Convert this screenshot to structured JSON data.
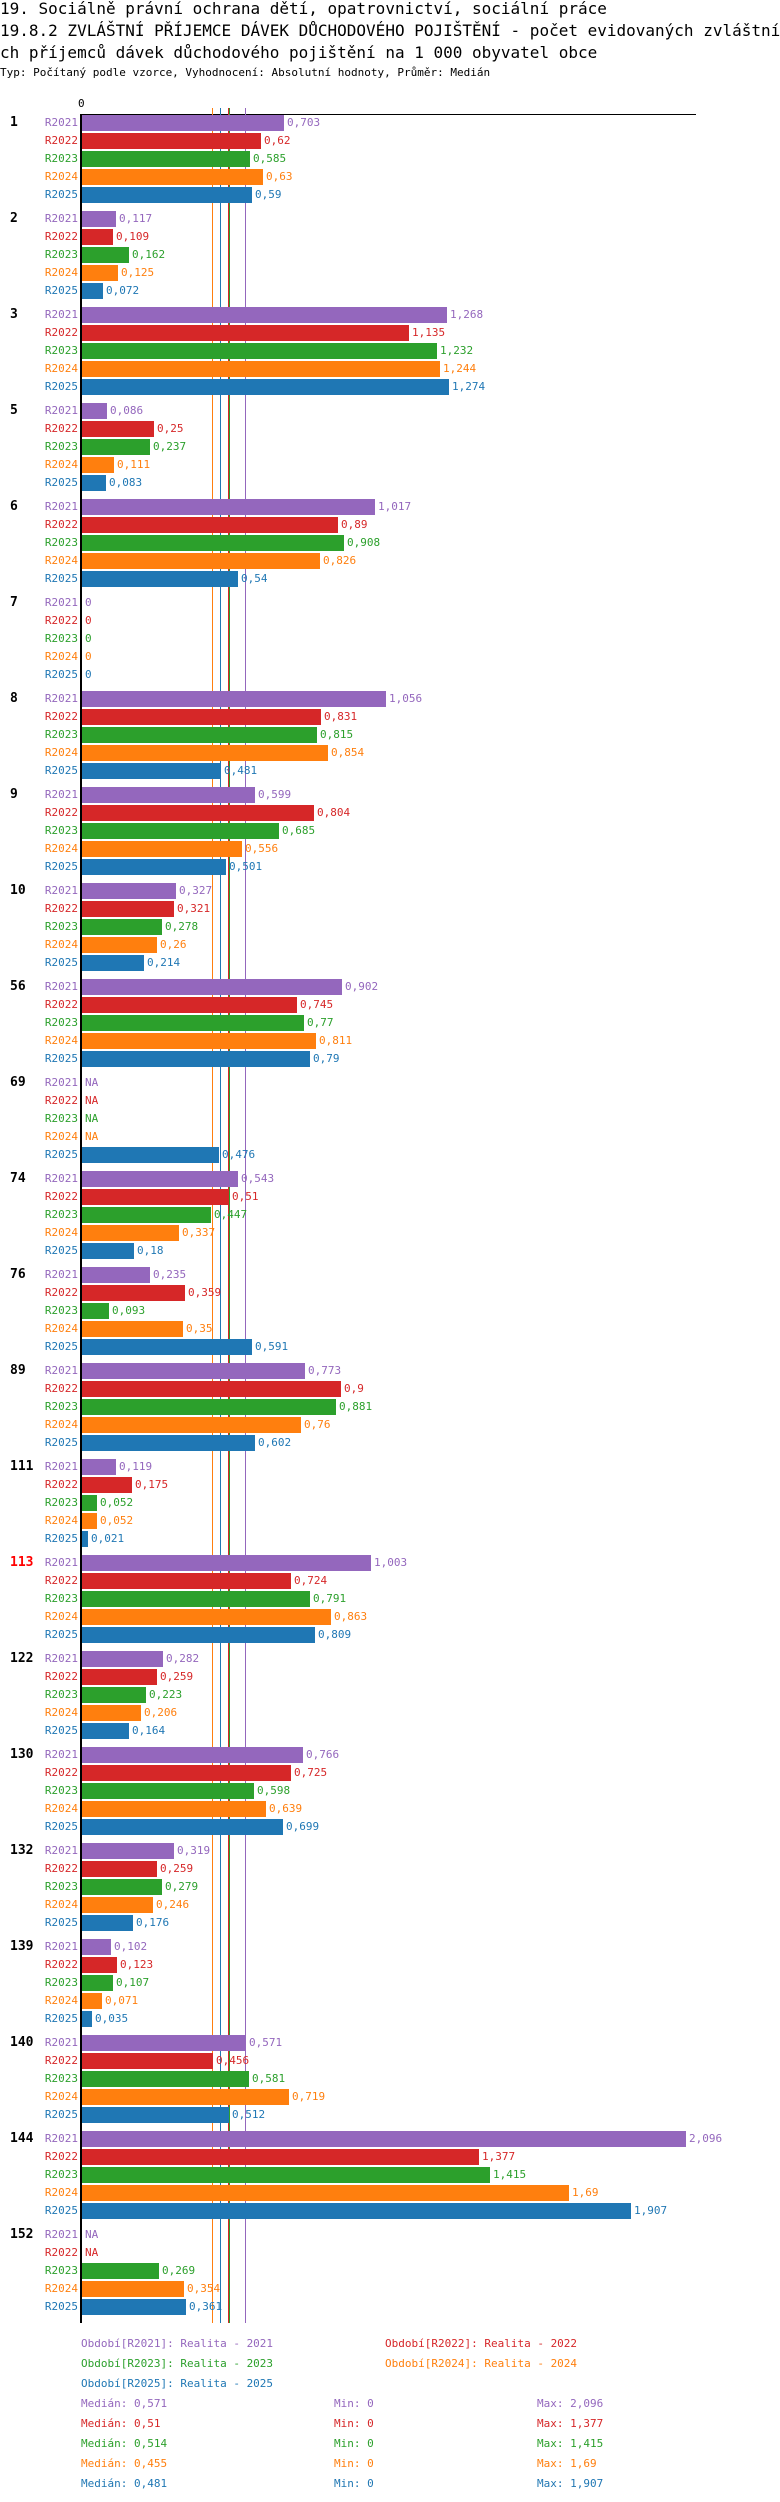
{
  "header": {
    "title1": "19. Sociálně právní ochrana dětí, opatrovnictví, sociální práce",
    "title2": "19.8.2 ZVLÁŠTNÍ PŘÍJEMCE DÁVEK DŮCHODOVÉHO POJIŠTĚNÍ - počet evidovaných zvláštní",
    "title3": "ch příjemců dávek důchodového pojištění na 1 000 obyvatel obce",
    "subtitle": "Typ: Počítaný podle vzorce, Vyhodnocení: Absolutní hodnoty, Průměr: Medián"
  },
  "chart_data": {
    "type": "bar",
    "orientation": "horizontal",
    "axis_zero_label": "0",
    "xlim": [
      0,
      2.1
    ],
    "series_names": [
      "R2021",
      "R2022",
      "R2023",
      "R2024",
      "R2025"
    ],
    "colors": [
      "#9467bd",
      "#d62728",
      "#2ca02c",
      "#ff7f0e",
      "#1f77b4"
    ],
    "highlight_color": "#ff0000",
    "groups": [
      {
        "label": "1",
        "values": [
          "0,703",
          "0,62",
          "0,585",
          "0,63",
          "0,59"
        ]
      },
      {
        "label": "2",
        "values": [
          "0,117",
          "0,109",
          "0,162",
          "0,125",
          "0,072"
        ]
      },
      {
        "label": "3",
        "values": [
          "1,268",
          "1,135",
          "1,232",
          "1,244",
          "1,274"
        ]
      },
      {
        "label": "5",
        "values": [
          "0,086",
          "0,25",
          "0,237",
          "0,111",
          "0,083"
        ]
      },
      {
        "label": "6",
        "values": [
          "1,017",
          "0,89",
          "0,908",
          "0,826",
          "0,54"
        ]
      },
      {
        "label": "7",
        "values": [
          "0",
          "0",
          "0",
          "0",
          "0"
        ]
      },
      {
        "label": "8",
        "values": [
          "1,056",
          "0,831",
          "0,815",
          "0,854",
          "0,481"
        ]
      },
      {
        "label": "9",
        "values": [
          "0,599",
          "0,804",
          "0,685",
          "0,556",
          "0,501"
        ]
      },
      {
        "label": "10",
        "values": [
          "0,327",
          "0,321",
          "0,278",
          "0,26",
          "0,214"
        ]
      },
      {
        "label": "56",
        "values": [
          "0,902",
          "0,745",
          "0,77",
          "0,811",
          "0,79"
        ]
      },
      {
        "label": "69",
        "values": [
          "NA",
          "NA",
          "NA",
          "NA",
          "0,476"
        ]
      },
      {
        "label": "74",
        "values": [
          "0,543",
          "0,51",
          "0,447",
          "0,337",
          "0,18"
        ]
      },
      {
        "label": "76",
        "values": [
          "0,235",
          "0,359",
          "0,093",
          "0,35",
          "0,591"
        ]
      },
      {
        "label": "89",
        "values": [
          "0,773",
          "0,9",
          "0,881",
          "0,76",
          "0,602"
        ]
      },
      {
        "label": "111",
        "values": [
          "0,119",
          "0,175",
          "0,052",
          "0,052",
          "0,021"
        ]
      },
      {
        "label": "113",
        "values": [
          "1,003",
          "0,724",
          "0,791",
          "0,863",
          "0,809"
        ],
        "highlight": true
      },
      {
        "label": "122",
        "values": [
          "0,282",
          "0,259",
          "0,223",
          "0,206",
          "0,164"
        ]
      },
      {
        "label": "130",
        "values": [
          "0,766",
          "0,725",
          "0,598",
          "0,639",
          "0,699"
        ]
      },
      {
        "label": "132",
        "values": [
          "0,319",
          "0,259",
          "0,279",
          "0,246",
          "0,176"
        ]
      },
      {
        "label": "139",
        "values": [
          "0,102",
          "0,123",
          "0,107",
          "0,071",
          "0,035"
        ]
      },
      {
        "label": "140",
        "values": [
          "0,571",
          "0,456",
          "0,581",
          "0,719",
          "0,512"
        ]
      },
      {
        "label": "144",
        "values": [
          "2,096",
          "1,377",
          "1,415",
          "1,69",
          "1,907"
        ]
      },
      {
        "label": "152",
        "values": [
          "NA",
          "NA",
          "0,269",
          "0,354",
          "0,361"
        ]
      }
    ],
    "medians": [
      0.571,
      0.51,
      0.514,
      0.455,
      0.481
    ],
    "legend": [
      "Období[R2021]: Realita - 2021",
      "Období[R2022]: Realita - 2022",
      "Období[R2023]: Realita - 2023",
      "Období[R2024]: Realita - 2024",
      "Období[R2025]: Realita - 2025"
    ],
    "stats": [
      {
        "median": "Medián: 0,571",
        "min": "Min: 0",
        "max": "Max: 2,096"
      },
      {
        "median": "Medián: 0,51",
        "min": "Min: 0",
        "max": "Max: 1,377"
      },
      {
        "median": "Medián: 0,514",
        "min": "Min: 0",
        "max": "Max: 1,415"
      },
      {
        "median": "Medián: 0,455",
        "min": "Min: 0",
        "max": "Max: 1,69"
      },
      {
        "median": "Medián: 0,481",
        "min": "Min: 0",
        "max": "Max: 1,907"
      }
    ]
  }
}
